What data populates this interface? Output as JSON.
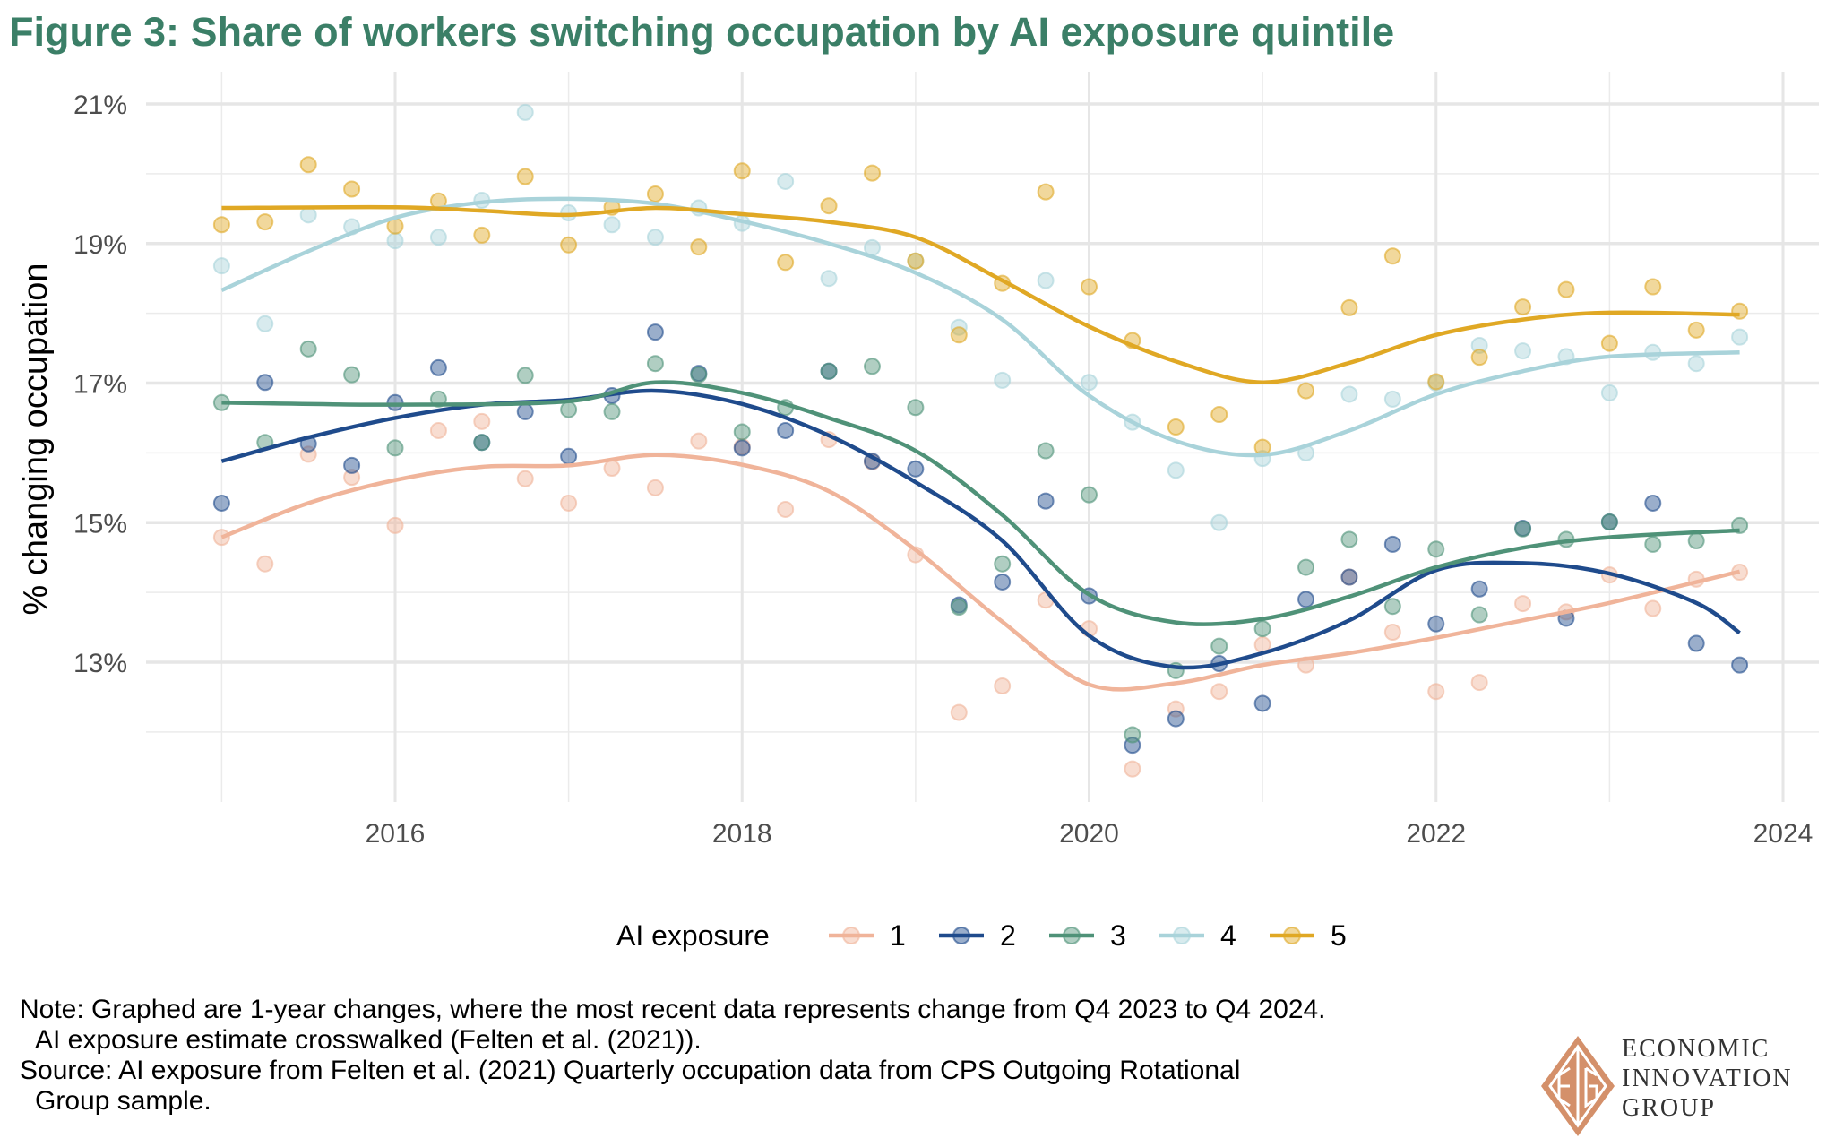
{
  "title": "Figure 3: Share of workers switching occupation by AI exposure quintile",
  "notes": {
    "line1": "Note: Graphed are 1-year changes, where the most recent data represents change from Q4 2023 to Q4 2024.",
    "line2": "AI exposure estimate crosswalked (Felten et al. (2021)).",
    "line3": "Source: AI exposure from Felten et al. (2021) Quarterly occupation data from CPS Outgoing Rotational",
    "line4": "Group sample."
  },
  "logo": {
    "icon": "eig-diamond-logo-icon",
    "line1": "ECONOMIC",
    "line2": "INNOVATION",
    "line3": "GROUP",
    "color": "#d4906a"
  },
  "chart_data": {
    "type": "scatter",
    "subtype": "scatter with smoothed trend lines",
    "title": "Figure 3: Share of workers switching occupation by AI exposure quintile",
    "xlabel": "",
    "ylabel": "% changing occupation",
    "xlim": [
      2014.55,
      2024.1
    ],
    "ylim": [
      11.05,
      21.6
    ],
    "xticks": [
      2016,
      2018,
      2020,
      2022,
      2024
    ],
    "xtick_labels": [
      "2016",
      "2018",
      "2020",
      "2022",
      "2024"
    ],
    "yticks": [
      13,
      15,
      17,
      19,
      21
    ],
    "ytick_labels": [
      "13%",
      "15%",
      "17%",
      "19%",
      "21%"
    ],
    "grid": true,
    "legend": {
      "title": "AI exposure",
      "position": "bottom"
    },
    "x": [
      2015.0,
      2015.25,
      2015.5,
      2015.75,
      2016.0,
      2016.25,
      2016.5,
      2016.75,
      2017.0,
      2017.25,
      2017.5,
      2017.75,
      2018.0,
      2018.25,
      2018.5,
      2018.75,
      2019.0,
      2019.25,
      2019.5,
      2019.75,
      2020.0,
      2020.25,
      2020.5,
      2020.75,
      2021.0,
      2021.25,
      2021.5,
      2021.75,
      2022.0,
      2022.25,
      2022.5,
      2022.75,
      2023.0,
      2023.25,
      2023.5,
      2023.75
    ],
    "series": [
      {
        "name": "1",
        "color": "#f0b49a",
        "values": [
          14.79,
          14.41,
          15.98,
          15.65,
          14.96,
          16.32,
          16.45,
          15.63,
          15.28,
          15.78,
          15.5,
          16.17,
          16.09,
          15.19,
          16.19,
          15.87,
          14.54,
          12.28,
          12.66,
          13.89,
          13.48,
          11.47,
          12.33,
          12.58,
          13.25,
          12.96,
          14.22,
          13.43,
          12.58,
          12.71,
          13.84,
          13.72,
          14.25,
          13.77,
          14.19,
          14.29
        ],
        "trend_x": [
          2015.0,
          2015.5,
          2016.0,
          2016.5,
          2017.0,
          2017.5,
          2018.0,
          2018.5,
          2019.0,
          2019.5,
          2020.0,
          2020.5,
          2021.0,
          2021.5,
          2022.0,
          2022.5,
          2023.0,
          2023.75
        ],
        "trend": [
          14.79,
          15.28,
          15.61,
          15.8,
          15.82,
          15.97,
          15.83,
          15.45,
          14.61,
          13.58,
          12.68,
          12.7,
          12.96,
          13.13,
          13.35,
          13.6,
          13.85,
          14.3
        ]
      },
      {
        "name": "2",
        "color": "#1f4b8c",
        "values": [
          15.28,
          17.01,
          16.13,
          15.82,
          16.72,
          17.22,
          16.15,
          16.59,
          15.95,
          16.82,
          17.73,
          17.14,
          16.07,
          16.32,
          17.17,
          15.88,
          15.77,
          13.82,
          14.15,
          15.31,
          13.95,
          11.81,
          12.19,
          12.98,
          12.41,
          13.9,
          14.22,
          14.69,
          13.55,
          14.05,
          14.92,
          13.63,
          15.01,
          15.28,
          13.27,
          12.96
        ],
        "trend_x": [
          2015.0,
          2015.5,
          2016.0,
          2016.5,
          2017.0,
          2017.5,
          2018.0,
          2018.5,
          2019.0,
          2019.5,
          2020.0,
          2020.5,
          2021.0,
          2021.5,
          2022.0,
          2022.5,
          2023.0,
          2023.5,
          2023.75
        ],
        "trend": [
          15.88,
          16.22,
          16.5,
          16.69,
          16.76,
          16.89,
          16.7,
          16.25,
          15.58,
          14.74,
          13.38,
          12.93,
          13.13,
          13.6,
          14.32,
          14.42,
          14.27,
          13.85,
          13.42
        ]
      },
      {
        "name": "3",
        "color": "#4f9278",
        "values": [
          16.72,
          16.15,
          17.49,
          17.12,
          16.07,
          16.77,
          16.15,
          17.11,
          16.62,
          16.59,
          17.28,
          17.12,
          16.3,
          16.65,
          17.17,
          17.24,
          16.65,
          13.79,
          14.41,
          16.03,
          15.4,
          11.96,
          12.88,
          13.23,
          13.48,
          14.36,
          14.76,
          13.8,
          14.62,
          13.68,
          14.91,
          14.76,
          15.01,
          14.69,
          14.74,
          14.96
        ],
        "trend_x": [
          2015.0,
          2016.0,
          2017.0,
          2017.5,
          2018.0,
          2018.5,
          2019.0,
          2019.5,
          2020.0,
          2020.5,
          2021.0,
          2021.5,
          2022.0,
          2022.5,
          2023.0,
          2023.75
        ],
        "trend": [
          16.72,
          16.69,
          16.74,
          17.01,
          16.86,
          16.5,
          16.03,
          15.11,
          13.97,
          13.57,
          13.62,
          13.94,
          14.36,
          14.64,
          14.79,
          14.89
        ]
      },
      {
        "name": "4",
        "color": "#a9d3da",
        "values": [
          18.68,
          17.85,
          19.41,
          19.24,
          19.04,
          19.09,
          19.62,
          20.88,
          19.44,
          19.27,
          19.09,
          19.51,
          19.29,
          19.89,
          18.5,
          18.94,
          18.75,
          17.8,
          17.04,
          18.47,
          17.01,
          16.44,
          15.75,
          15.0,
          15.92,
          16.0,
          16.84,
          16.77,
          17.0,
          17.54,
          17.46,
          17.38,
          16.86,
          17.44,
          17.28,
          17.66
        ],
        "trend_x": [
          2015.0,
          2015.5,
          2016.0,
          2016.5,
          2017.0,
          2017.5,
          2018.0,
          2018.5,
          2019.0,
          2019.5,
          2020.0,
          2020.5,
          2021.0,
          2021.5,
          2022.0,
          2022.5,
          2023.0,
          2023.75
        ],
        "trend": [
          18.33,
          18.89,
          19.37,
          19.59,
          19.64,
          19.57,
          19.32,
          19.0,
          18.58,
          17.91,
          16.82,
          16.17,
          15.97,
          16.32,
          16.84,
          17.17,
          17.38,
          17.44
        ]
      },
      {
        "name": "5",
        "color": "#e0a824",
        "values": [
          19.27,
          19.31,
          20.13,
          19.78,
          19.25,
          19.61,
          19.12,
          19.96,
          18.98,
          19.52,
          19.71,
          18.95,
          20.04,
          18.73,
          19.54,
          20.01,
          18.75,
          17.69,
          18.43,
          19.74,
          18.38,
          17.61,
          16.37,
          16.55,
          16.08,
          16.89,
          18.08,
          18.82,
          17.02,
          17.37,
          18.09,
          18.34,
          17.57,
          18.38,
          17.76,
          18.03
        ],
        "trend_x": [
          2015.0,
          2016.0,
          2016.5,
          2017.0,
          2017.5,
          2018.0,
          2018.5,
          2019.0,
          2019.5,
          2020.0,
          2020.5,
          2021.0,
          2021.5,
          2022.0,
          2022.5,
          2023.0,
          2023.75
        ],
        "trend": [
          19.51,
          19.52,
          19.47,
          19.41,
          19.51,
          19.42,
          19.31,
          19.09,
          18.47,
          17.81,
          17.31,
          17.01,
          17.29,
          17.69,
          17.91,
          18.01,
          17.98
        ]
      }
    ]
  }
}
